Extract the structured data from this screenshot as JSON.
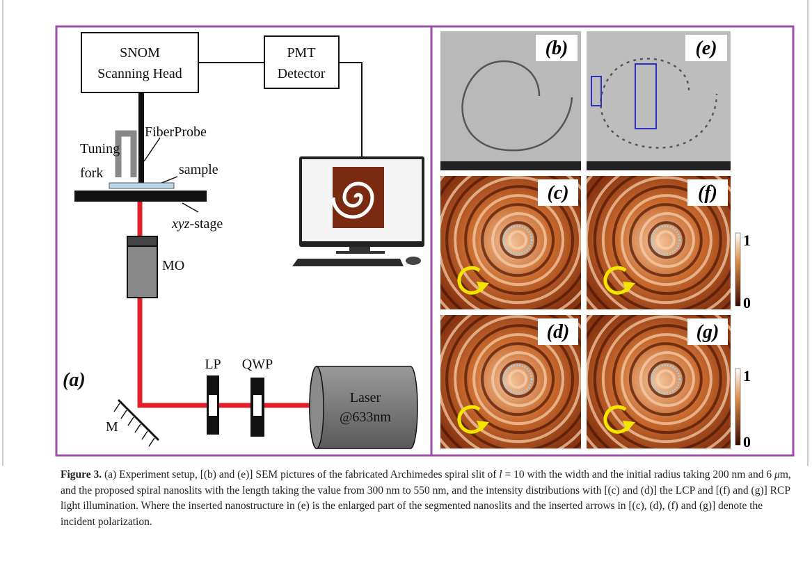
{
  "figure": {
    "setup": {
      "snom": [
        "SNOM",
        "Scanning Head"
      ],
      "pmt": [
        "PMT",
        "Detector"
      ],
      "fiber_probe": "FiberProbe",
      "tuning_fork": [
        "Tuning",
        "fork"
      ],
      "sample": "sample",
      "stage": [
        "xyz",
        "-stage"
      ],
      "mo": "MO",
      "panel_label": "(a)",
      "lp": "LP",
      "qwp": "QWP",
      "laser": [
        "Laser",
        "@633nm"
      ],
      "mirror": "M"
    },
    "panels": {
      "b": "(b)",
      "e": "(e)",
      "c": "(c)",
      "f": "(f)",
      "d": "(d)",
      "g": "(g)"
    },
    "colorbars": [
      {
        "max": "1",
        "min": "0"
      },
      {
        "max": "1",
        "min": "0"
      }
    ]
  },
  "caption": {
    "label": "Figure 3.",
    "text": [
      "  (a) Experiment setup, [(b) and (e)] SEM pictures of the fabricated Archimedes spiral slit of ",
      "l",
      " = 10 with the width and the initial radius taking 200 nm and 6 ",
      "μ",
      "m, and the proposed spiral nanoslits with the length taking the value from 300 nm to 550 nm, and the intensity distributions with [(c) and (d)] the LCP and [(f) and (g)] RCP light illumination. Where the inserted nanostructure in (e) is the enlarged part of the segmented nanoslits and the inserted arrows in [(c), (d), (f) and (g)] denote the incident polarization."
    ]
  }
}
